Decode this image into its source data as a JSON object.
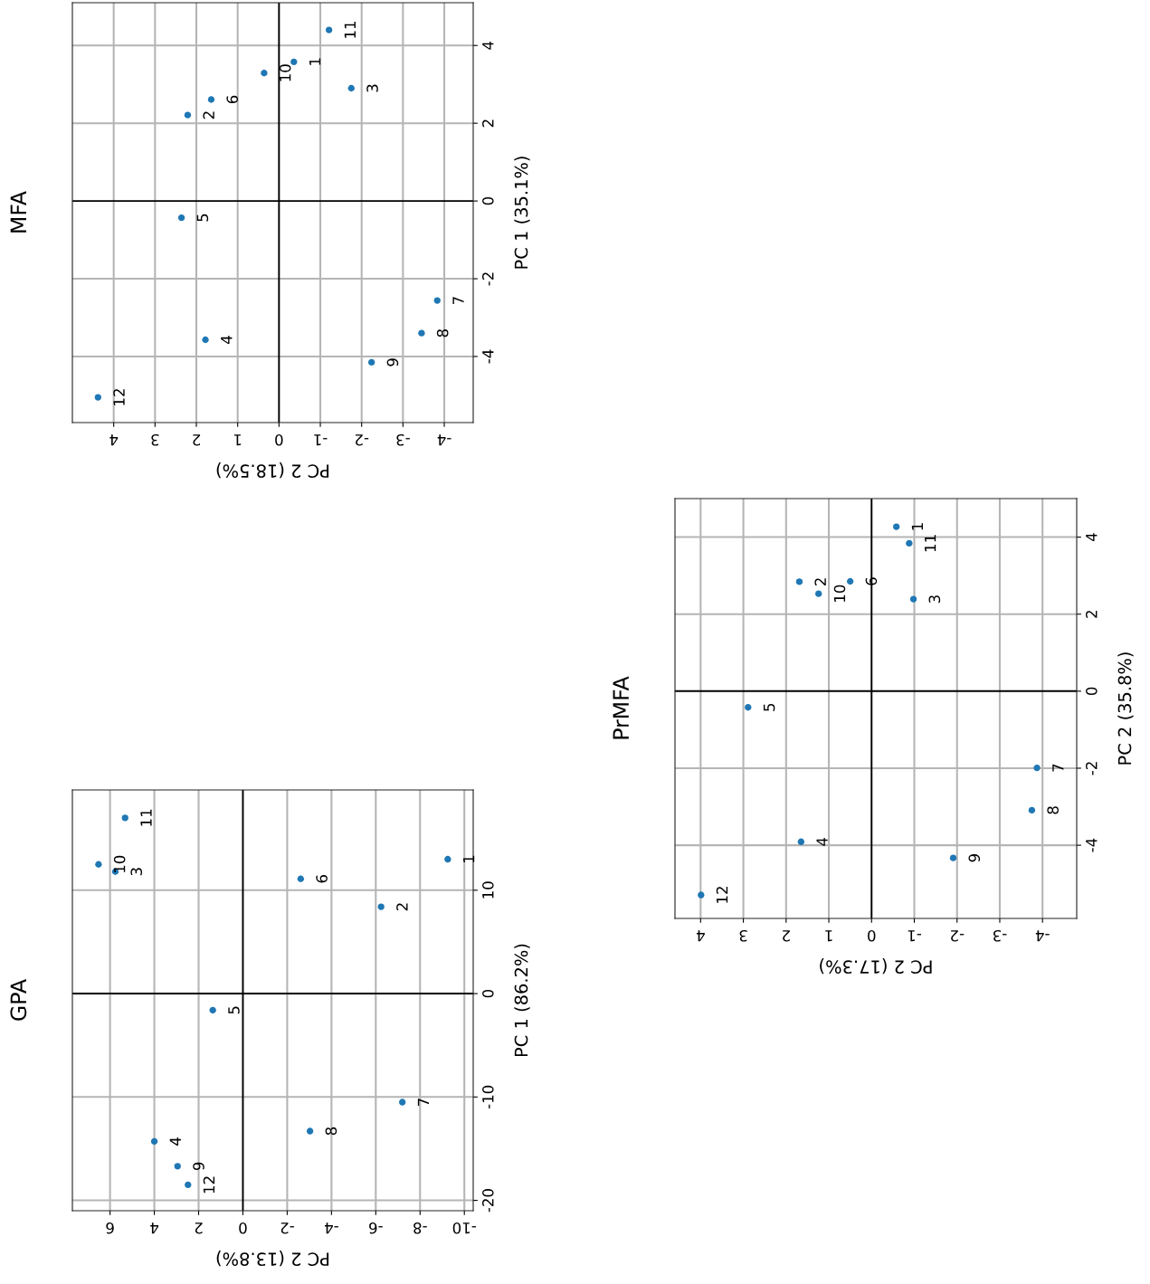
{
  "chart_data": [
    {
      "type": "scatter",
      "title": "MFA",
      "xlabel": "PC 2 (18.5%)",
      "ylabel": "PC 1 (35.1%)",
      "xlim": [
        5.0,
        -4.7
      ],
      "ylim": [
        -5.7,
        5.1
      ],
      "xticks": [
        -4,
        -3,
        -2,
        -1,
        0,
        1,
        2,
        3,
        4
      ],
      "yticks": [
        -4,
        -2,
        0,
        2,
        4
      ],
      "grid": true,
      "marker": "circle",
      "x": [
        -0.36,
        2.21,
        -1.75,
        1.78,
        2.36,
        1.64,
        -3.83,
        -3.45,
        -2.24,
        0.36,
        -1.21,
        4.38
      ],
      "series": [
        {
          "color": "#1f77b4",
          "values": [
            3.58,
            2.21,
            2.9,
            -3.57,
            -0.43,
            2.61,
            -2.56,
            -3.4,
            -4.15,
            3.29,
            4.4,
            -5.05
          ]
        }
      ],
      "annotations": [
        {
          "text": "1",
          "x": -0.36,
          "y": 3.58
        },
        {
          "text": "2",
          "x": 2.21,
          "y": 2.21
        },
        {
          "text": "3",
          "x": -1.75,
          "y": 2.9
        },
        {
          "text": "4",
          "x": 1.78,
          "y": -3.57
        },
        {
          "text": "5",
          "x": 2.36,
          "y": -0.43
        },
        {
          "text": "6",
          "x": 1.64,
          "y": 2.61
        },
        {
          "text": "7",
          "x": -3.83,
          "y": -2.56
        },
        {
          "text": "8",
          "x": -3.45,
          "y": -3.4
        },
        {
          "text": "9",
          "x": -2.24,
          "y": -4.15
        },
        {
          "text": "10",
          "x": 0.36,
          "y": 3.29
        },
        {
          "text": "11",
          "x": -1.21,
          "y": 4.4
        },
        {
          "text": "12",
          "x": 4.38,
          "y": -5.05
        }
      ]
    },
    {
      "type": "scatter",
      "title": "PrMFA",
      "xlabel": "PC 2 (17.3%)",
      "ylabel": "PC 2 (35.8%)",
      "xlim": [
        4.6,
        -4.8
      ],
      "ylim": [
        -5.9,
        5.0
      ],
      "xticks": [
        -4,
        -3,
        -2,
        -1,
        0,
        1,
        2,
        3,
        4
      ],
      "yticks": [
        -4,
        -2,
        0,
        2,
        4
      ],
      "grid": true,
      "marker": "circle",
      "x": [
        -0.58,
        1.69,
        -0.98,
        1.65,
        2.89,
        0.5,
        -3.87,
        -3.75,
        -1.91,
        1.24,
        -0.88,
        3.99
      ],
      "series": [
        {
          "color": "#1f77b4",
          "values": [
            4.27,
            2.84,
            2.39,
            -3.91,
            -0.42,
            2.85,
            -1.99,
            -3.09,
            -4.33,
            2.53,
            3.84,
            -5.29
          ]
        }
      ],
      "annotations": [
        {
          "text": "1",
          "x": -0.58,
          "y": 4.27
        },
        {
          "text": "2",
          "x": 1.69,
          "y": 2.84
        },
        {
          "text": "3",
          "x": -0.98,
          "y": 2.39
        },
        {
          "text": "4",
          "x": 1.65,
          "y": -3.91
        },
        {
          "text": "5",
          "x": 2.89,
          "y": -0.42
        },
        {
          "text": "6",
          "x": 0.5,
          "y": 2.85
        },
        {
          "text": "7",
          "x": -3.87,
          "y": -1.99
        },
        {
          "text": "8",
          "x": -3.75,
          "y": -3.09
        },
        {
          "text": "9",
          "x": -1.91,
          "y": -4.33
        },
        {
          "text": "10",
          "x": 1.24,
          "y": 2.53
        },
        {
          "text": "11",
          "x": -0.88,
          "y": 3.84
        },
        {
          "text": "12",
          "x": 3.99,
          "y": -5.29
        }
      ]
    },
    {
      "type": "scatter",
      "title": "GPA",
      "xlabel": "PC 2 (13.8%)",
      "ylabel": "PC 1 (86.2%)",
      "xlim": [
        7.7,
        -10.4
      ],
      "ylim": [
        -21.0,
        19.7
      ],
      "xticks": [
        -10,
        -8,
        -6,
        -4,
        -2,
        0,
        2,
        4,
        6
      ],
      "yticks": [
        -20,
        -10,
        0,
        10
      ],
      "grid": true,
      "marker": "circle",
      "x": [
        -9.25,
        -6.24,
        5.76,
        4.0,
        1.36,
        -2.61,
        -7.2,
        -3.03,
        2.95,
        6.52,
        5.32,
        2.48
      ],
      "series": [
        {
          "color": "#1f77b4",
          "values": [
            13.0,
            8.4,
            11.8,
            -14.3,
            -1.6,
            11.1,
            -10.5,
            -13.3,
            -16.7,
            12.5,
            17.0,
            -18.5
          ]
        }
      ],
      "annotations": [
        {
          "text": "1",
          "x": -9.25,
          "y": 13.0
        },
        {
          "text": "2",
          "x": -6.24,
          "y": 8.4
        },
        {
          "text": "3",
          "x": 5.76,
          "y": 11.8
        },
        {
          "text": "4",
          "x": 4.0,
          "y": -14.3
        },
        {
          "text": "5",
          "x": 1.36,
          "y": -1.6
        },
        {
          "text": "6",
          "x": -2.61,
          "y": 11.1
        },
        {
          "text": "7",
          "x": -7.2,
          "y": -10.5
        },
        {
          "text": "8",
          "x": -3.03,
          "y": -13.3
        },
        {
          "text": "9",
          "x": 2.95,
          "y": -16.7
        },
        {
          "text": "10",
          "x": 6.52,
          "y": 12.5
        },
        {
          "text": "11",
          "x": 5.32,
          "y": 17.0
        },
        {
          "text": "12",
          "x": 2.48,
          "y": -18.5
        }
      ]
    }
  ]
}
